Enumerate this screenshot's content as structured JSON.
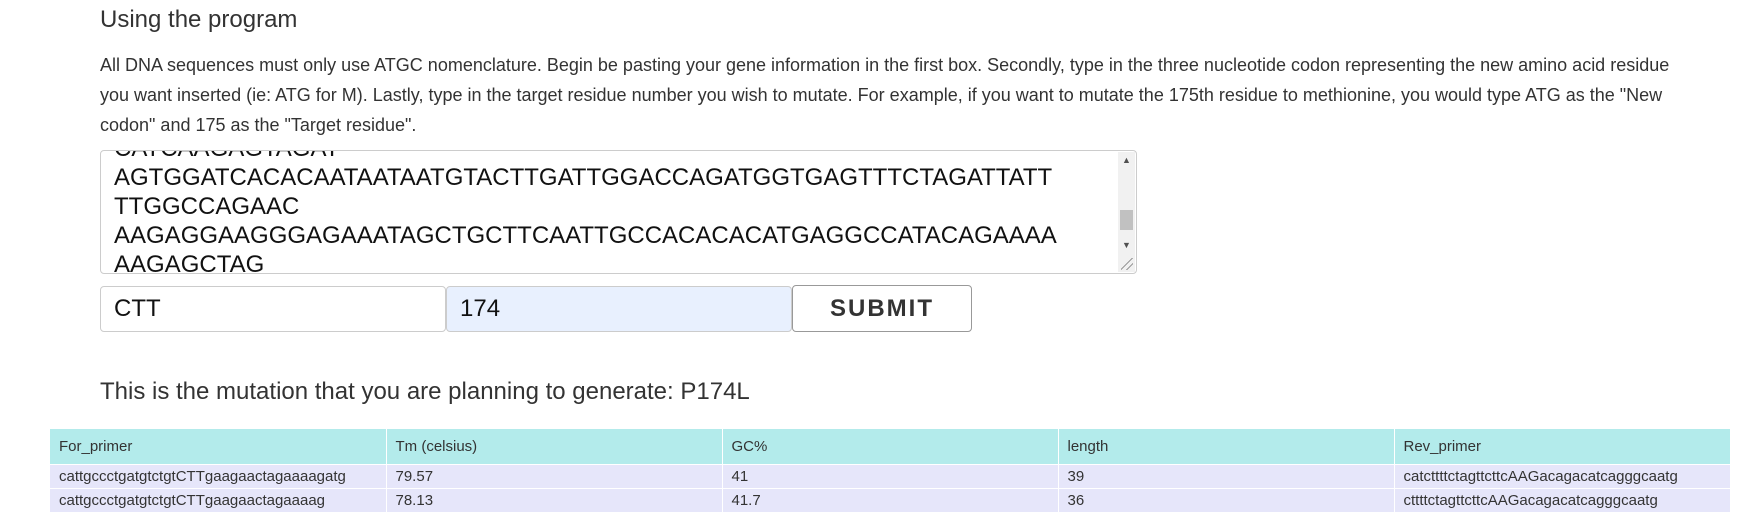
{
  "section_title": "Using the program",
  "instructions": "All DNA sequences must only use ATGC nomenclature. Begin be pasting your gene information in the first box. Secondly, type in the three nucleotide codon representing the new amino acid residue you want inserted (ie: ATG for M). Lastly, type in the target residue number you wish to mutate. For example, if you want to mutate the 175th residue to methionine, you would type ATG as the \"New codon\" and 175 as the \"Target residue\".",
  "form": {
    "sequence_lines": [
      "CATCAAGAGTAGAT",
      "AGTGGATCACACAATAATAATGTACTTGATTGGACCAGATGGTGAGTTTCTAGATTATT",
      "TTGGCCAGAAC",
      "AAGAGGAAGGGAGAAATAGCTGCTTCAATTGCCACACACATGAGGCCATACAGAAAA",
      "AAGAGCTAG"
    ],
    "new_codon_value": "CTT",
    "target_residue_value": "174",
    "submit_label": "SUBMIT"
  },
  "mutation_summary": "This is the mutation that you are planning to generate: P174L",
  "primer_table": {
    "headers": [
      "For_primer",
      "Tm (celsius)",
      "GC%",
      "length",
      "Rev_primer"
    ],
    "rows": [
      [
        "cattgccctgatgtctgtCTTgaagaactagaaaagatg",
        "79.57",
        "41",
        "39",
        "catcttttctagttcttcAAGacagacatcagggcaatg"
      ],
      [
        "cattgccctgatgtctgtCTTgaagaactagaaaag",
        "78.13",
        "41.7",
        "36",
        "cttttctagttcttcAAGacagacatcagggcaatg"
      ]
    ]
  },
  "colors": {
    "table_header_bg": "#b3ebeb",
    "table_row_bg": "#e6e6fa",
    "autofill_input_bg": "#e8f0fe"
  }
}
